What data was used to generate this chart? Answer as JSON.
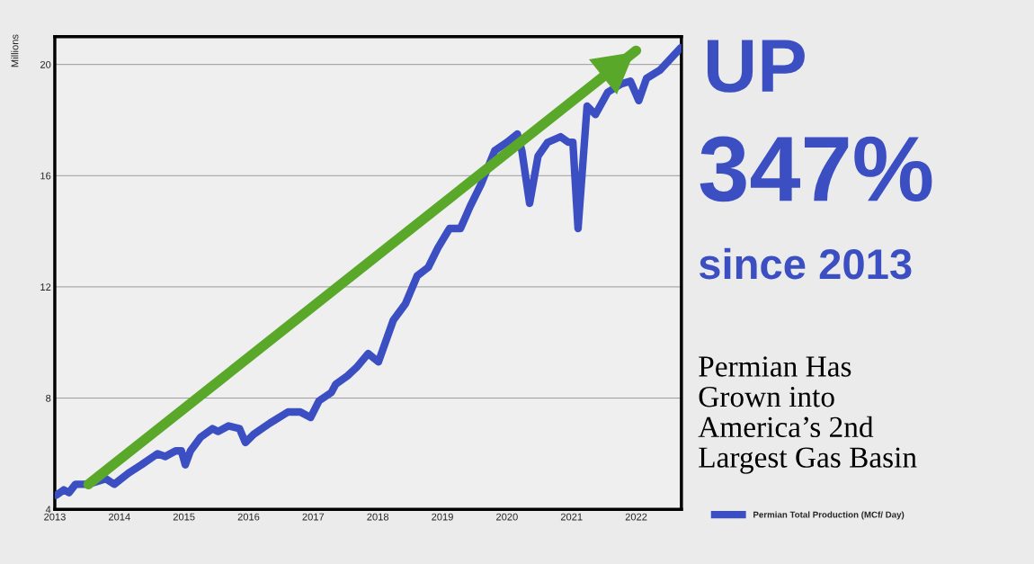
{
  "chart_data": {
    "type": "line",
    "ylabel": "Millions",
    "xlim": [
      2013,
      2022.7
    ],
    "xticks": [
      {
        "value": 2013,
        "label": "2013"
      },
      {
        "value": 2014,
        "label": "2014"
      },
      {
        "value": 2015,
        "label": "2015"
      },
      {
        "value": 2016,
        "label": "2016"
      },
      {
        "value": 2017,
        "label": "2017"
      },
      {
        "value": 2018,
        "label": "2018"
      },
      {
        "value": 2019,
        "label": "2019"
      },
      {
        "value": 2020,
        "label": "2020"
      },
      {
        "value": 2021,
        "label": "2021"
      },
      {
        "value": 2022,
        "label": "2022"
      }
    ],
    "ylim": [
      4,
      21
    ],
    "yticks": [
      4,
      8,
      12,
      16,
      20
    ],
    "grid": "y",
    "legend": "bottom right",
    "line_style": "solid",
    "marker": "none",
    "series": [
      {
        "name": "Permian Total Production (MCf/ Day)",
        "color": "#3c4fc2",
        "x": [
          2013.02,
          2013.14,
          2013.22,
          2013.32,
          2013.52,
          2013.79,
          2013.92,
          2014.14,
          2014.34,
          2014.59,
          2014.71,
          2014.87,
          2014.96,
          2015.02,
          2015.1,
          2015.26,
          2015.44,
          2015.53,
          2015.69,
          2015.86,
          2015.95,
          2016.08,
          2016.33,
          2016.61,
          2016.8,
          2016.96,
          2017.09,
          2017.28,
          2017.35,
          2017.53,
          2017.67,
          2017.85,
          2018.01,
          2018.24,
          2018.43,
          2018.61,
          2018.78,
          2018.93,
          2019.11,
          2019.28,
          2019.43,
          2019.6,
          2019.81,
          2020.0,
          2020.16,
          2020.23,
          2020.35,
          2020.48,
          2020.63,
          2020.83,
          2020.95,
          2021.02,
          2021.1,
          2021.24,
          2021.37,
          2021.56,
          2021.77,
          2021.91,
          2022.04,
          2022.16,
          2022.37,
          2022.69
        ],
        "values": [
          4.5,
          4.7,
          4.6,
          4.9,
          4.9,
          5.1,
          4.9,
          5.3,
          5.6,
          6.0,
          5.9,
          6.1,
          6.1,
          5.6,
          6.1,
          6.6,
          6.9,
          6.8,
          7.0,
          6.9,
          6.4,
          6.7,
          7.1,
          7.5,
          7.5,
          7.3,
          7.9,
          8.2,
          8.5,
          8.8,
          9.1,
          9.6,
          9.3,
          10.8,
          11.4,
          12.4,
          12.7,
          13.4,
          14.1,
          14.1,
          14.9,
          15.7,
          16.9,
          17.2,
          17.5,
          16.9,
          15.0,
          16.7,
          17.2,
          17.4,
          17.2,
          17.2,
          14.1,
          18.5,
          18.2,
          19.0,
          19.3,
          19.4,
          18.7,
          19.5,
          19.8,
          20.6
        ]
      },
      {
        "type": "line",
        "color": "#5aa82a",
        "x": [
          2013.52,
          2022.0
        ],
        "values": [
          4.9,
          20.5
        ]
      }
    ],
    "annotations": [
      "UP",
      "347%",
      "since 2013",
      "Permian Has\nGrown into\nAmerica’s 2nd\nLargest Gas Basin"
    ]
  }
}
